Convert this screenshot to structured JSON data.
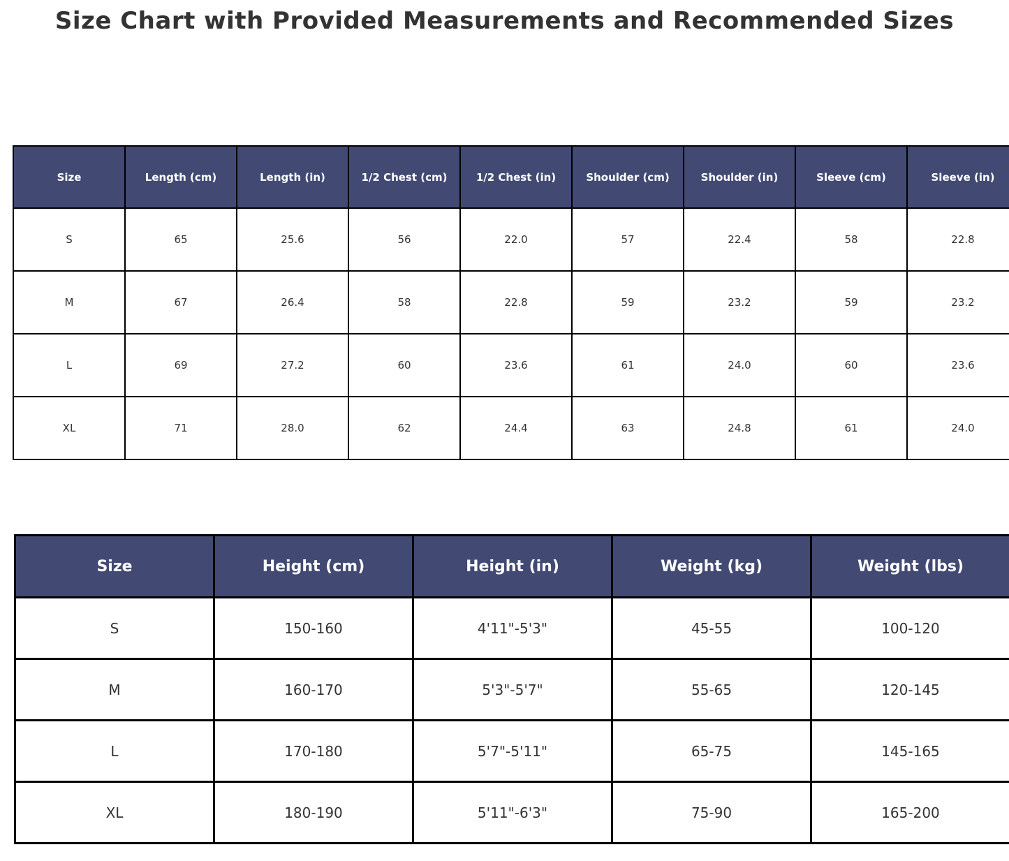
{
  "title": "Size Chart with Provided Measurements and Recommended Sizes",
  "colors": {
    "header_bg": "#424a73",
    "header_text": "#ffffff",
    "border": "#000000",
    "cell_text": "#333333",
    "title_text": "#333333"
  },
  "chart_data": [
    {
      "type": "table",
      "name": "provided_measurements",
      "columns": [
        "Size",
        "Length (cm)",
        "Length (in)",
        "1/2 Chest (cm)",
        "1/2 Chest (in)",
        "Shoulder (cm)",
        "Shoulder (in)",
        "Sleeve (cm)",
        "Sleeve (in)"
      ],
      "rows": [
        [
          "S",
          "65",
          "25.6",
          "56",
          "22.0",
          "57",
          "22.4",
          "58",
          "22.8"
        ],
        [
          "M",
          "67",
          "26.4",
          "58",
          "22.8",
          "59",
          "23.2",
          "59",
          "23.2"
        ],
        [
          "L",
          "69",
          "27.2",
          "60",
          "23.6",
          "61",
          "24.0",
          "60",
          "23.6"
        ],
        [
          "XL",
          "71",
          "28.0",
          "62",
          "24.4",
          "63",
          "24.8",
          "61",
          "24.0"
        ]
      ]
    },
    {
      "type": "table",
      "name": "recommended_sizes",
      "columns": [
        "Size",
        "Height (cm)",
        "Height (in)",
        "Weight (kg)",
        "Weight (lbs)"
      ],
      "rows": [
        [
          "S",
          "150-160",
          "4'11\"-5'3\"",
          "45-55",
          "100-120"
        ],
        [
          "M",
          "160-170",
          "5'3\"-5'7\"",
          "55-65",
          "120-145"
        ],
        [
          "L",
          "170-180",
          "5'7\"-5'11\"",
          "65-75",
          "145-165"
        ],
        [
          "XL",
          "180-190",
          "5'11\"-6'3\"",
          "75-90",
          "165-200"
        ]
      ]
    }
  ]
}
